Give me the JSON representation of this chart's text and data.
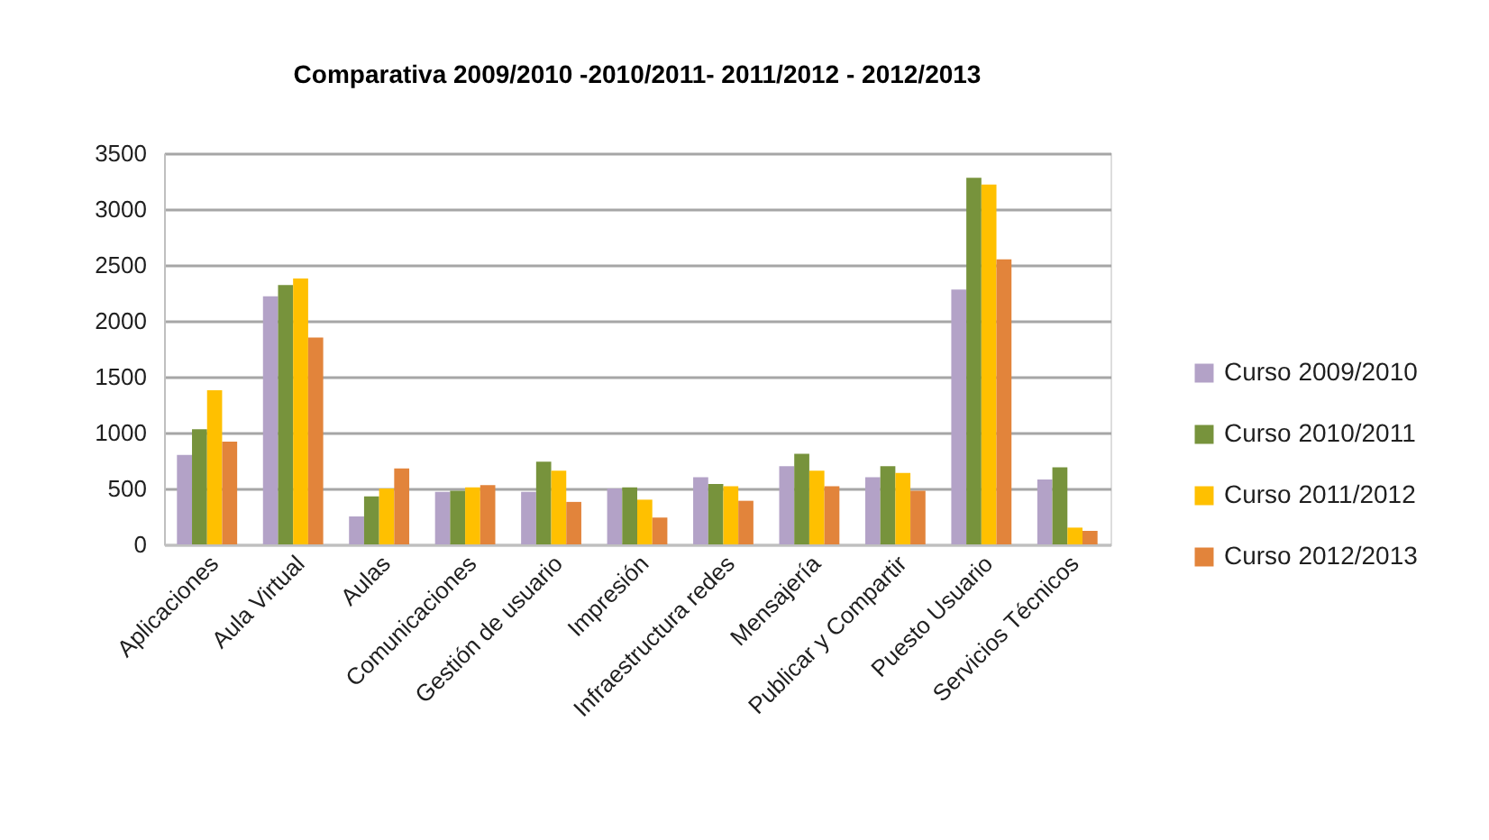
{
  "chart_data": {
    "type": "bar",
    "title": "Comparativa 2009/2010 -2010/2011- 2011/2012 - 2012/2013",
    "categories": [
      "Aplicaciones",
      "Aula Virtual",
      "Aulas",
      "Comunicaciones",
      "Gestión de usuario",
      "Impresión",
      "Infraestructura redes",
      "Mensajería",
      "Publicar y Compartir",
      "Puesto  Usuario",
      "Servicios Técnicos"
    ],
    "series": [
      {
        "name": "Curso 2009/2010",
        "color": "#b3a2c7",
        "values": [
          800,
          2220,
          250,
          470,
          470,
          500,
          600,
          700,
          600,
          2280,
          580
        ]
      },
      {
        "name": "Curso 2010/2011",
        "color": "#77933c",
        "values": [
          1030,
          2320,
          430,
          480,
          740,
          510,
          540,
          810,
          700,
          3280,
          690
        ]
      },
      {
        "name": "Curso 2011/2012",
        "color": "#ffc000",
        "values": [
          1380,
          2380,
          500,
          510,
          660,
          400,
          520,
          660,
          640,
          3220,
          150
        ]
      },
      {
        "name": "Curso 2012/2013",
        "color": "#e2843b",
        "values": [
          920,
          1850,
          680,
          530,
          380,
          240,
          390,
          520,
          480,
          2550,
          120
        ]
      }
    ],
    "ylim": [
      0,
      3500
    ],
    "yticks": [
      0,
      500,
      1000,
      1500,
      2000,
      2500,
      3000,
      3500
    ],
    "grid": "y",
    "legend": "right"
  }
}
